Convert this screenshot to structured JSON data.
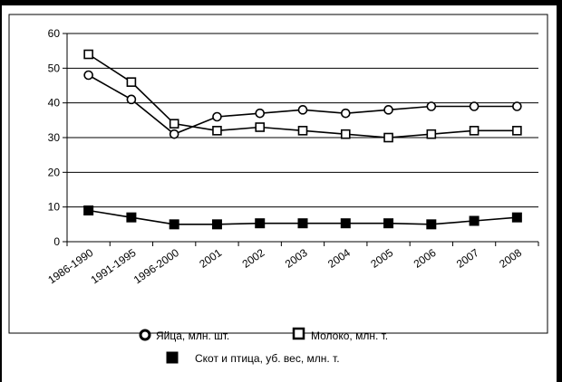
{
  "chart_data": {
    "type": "line",
    "title": "",
    "xlabel": "",
    "ylabel": "",
    "categories": [
      "1986-1990",
      "1991-1995",
      "1996-2000",
      "2001",
      "2002",
      "2003",
      "2004",
      "2005",
      "2006",
      "2007",
      "2008"
    ],
    "ylim": [
      0,
      60
    ],
    "yticks": [
      0,
      10,
      20,
      30,
      40,
      50,
      60
    ],
    "grid": true,
    "legend_position": "bottom",
    "series": [
      {
        "name": "Яйца, млн. шт.",
        "marker": "circle-open",
        "values": [
          48,
          41,
          31,
          36,
          37,
          38,
          37,
          38,
          39,
          39,
          39
        ]
      },
      {
        "name": "Молоко, млн. т.",
        "marker": "square-open",
        "values": [
          54,
          46,
          34,
          32,
          33,
          32,
          31,
          30,
          31,
          32,
          32
        ]
      },
      {
        "name": "Скот и птица, уб. вес, млн. т.",
        "marker": "square-filled",
        "values": [
          9,
          7,
          5,
          5,
          5.3,
          5.3,
          5.3,
          5.3,
          5,
          6,
          7
        ]
      }
    ],
    "colors": {
      "line": "#000000",
      "grid": "#000000",
      "background": "#ffffff"
    }
  }
}
